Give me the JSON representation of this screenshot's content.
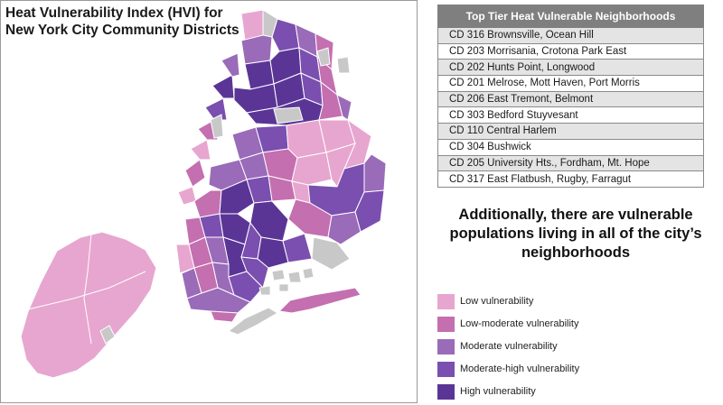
{
  "map": {
    "title_line1": "Heat Vulnerability Index (HVI) for",
    "title_line2": "New York City Community Districts"
  },
  "table": {
    "header": "Top Tier Heat Vulnerable Neighborhoods",
    "rows": [
      "CD 316 Brownsville, Ocean Hill",
      "CD 203 Morrisania, Crotona Park East",
      "CD 202 Hunts Point, Longwood",
      "CD 201 Melrose, Mott Haven, Port Morris",
      "CD 206 East Tremont, Belmont",
      "CD 303 Bedford Stuyvesant",
      "CD 110 Central Harlem",
      "CD 304 Bushwick",
      "CD 205 University Hts., Fordham, Mt. Hope",
      "CD 317 East Flatbush, Rugby, Farragut"
    ]
  },
  "statement": {
    "line1": "Additionally, there are vulnerable",
    "line2": "populations living in all of the city’s",
    "line3": "neighborhoods"
  },
  "legend": {
    "items": [
      {
        "label": "Low vulnerability",
        "color": "#e7a6cf"
      },
      {
        "label": "Low-moderate vulnerability",
        "color": "#c46fb0"
      },
      {
        "label": "Moderate vulnerability",
        "color": "#9a6bb8"
      },
      {
        "label": "Moderate-high vulnerability",
        "color": "#7a4fb0"
      },
      {
        "label": "High vulnerability",
        "color": "#5a3596"
      }
    ]
  },
  "colors": {
    "low": "#e7a6cf",
    "low_moderate": "#c46fb0",
    "moderate": "#9a6bb8",
    "moderate_high": "#7a4fb0",
    "high": "#5a3596",
    "no_data": "#c8c8c8",
    "table_header": "#7f7f7f",
    "table_alt_row": "#e4e4e4"
  }
}
